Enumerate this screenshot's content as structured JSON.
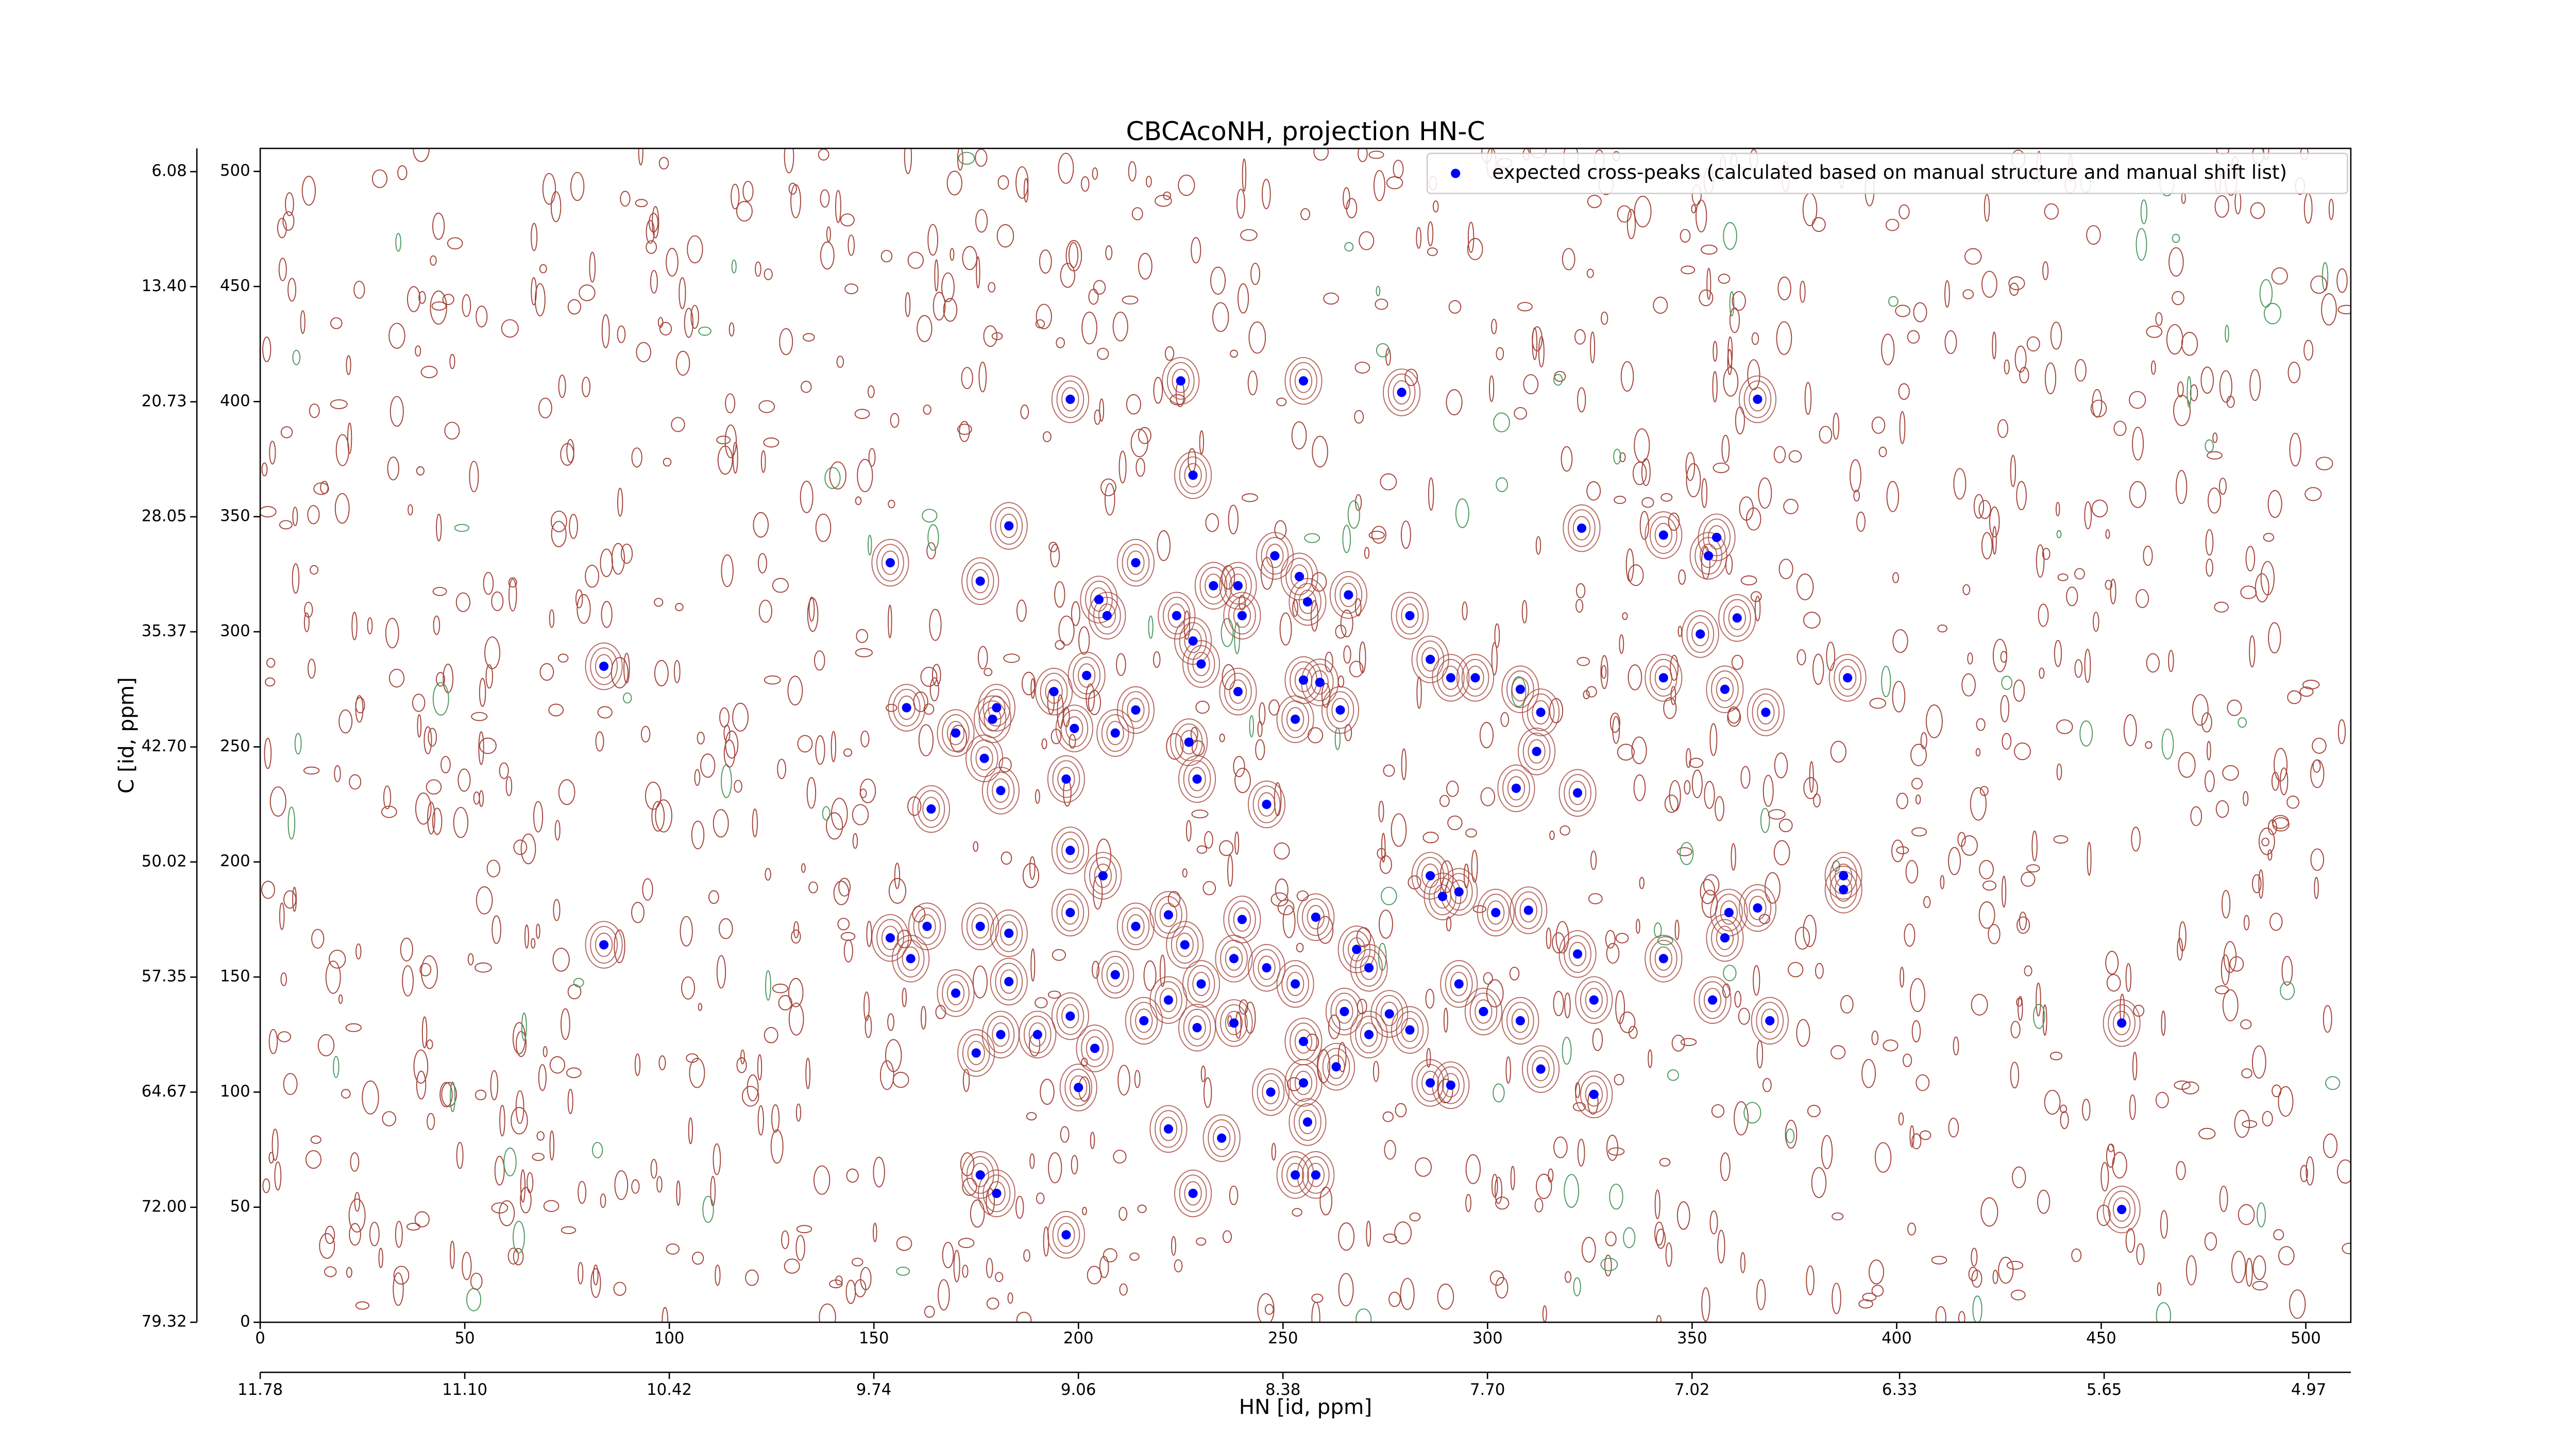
{
  "chart_data": {
    "type": "scatter",
    "title": "CBCAcoNH, projection HN-C",
    "x_label": "HN [id, ppm]",
    "y_label": "C [id, ppm]",
    "xlim": [
      0,
      511
    ],
    "ylim": [
      0,
      510
    ],
    "xticks": [
      0,
      50,
      100,
      150,
      200,
      250,
      300,
      350,
      400,
      450,
      500
    ],
    "yticks": [
      0,
      50,
      100,
      150,
      200,
      250,
      300,
      350,
      400,
      450,
      500
    ],
    "x2lim": [
      11.78,
      4.83
    ],
    "x2ticks": [
      11.78,
      {
        "value": 11.1,
        "label": "11.10"
      },
      10.42,
      9.74,
      9.06,
      8.38,
      {
        "value": 7.7,
        "label": "7.70"
      },
      7.02,
      6.33,
      5.65,
      4.97
    ],
    "y2lim": [
      79.32,
      4.6
    ],
    "y2ticks": [
      6.08,
      {
        "value": 13.4,
        "label": "13.40"
      },
      20.73,
      28.05,
      35.37,
      {
        "value": 42.7,
        "label": "42.70"
      },
      50.02,
      57.35,
      64.67,
      {
        "value": 72,
        "label": "72.00"
      },
      79.32
    ],
    "legend": "upper right",
    "series": [
      {
        "name": "expected cross-peaks (calculated based on manual structure and manual shift list)",
        "color": "#0000ff",
        "x": [
          154,
          84,
          84,
          158,
          164,
          183,
          176,
          198,
          225,
          228,
          255,
          279,
          366,
          323,
          343,
          356,
          354,
          388,
          343,
          352,
          361,
          358,
          368,
          387,
          387,
          366,
          359,
          358,
          343,
          355,
          369,
          455,
          455,
          322,
          326,
          326,
          313,
          308,
          299,
          293,
          286,
          291,
          322,
          307,
          312,
          313,
          308,
          297,
          291,
          286,
          281,
          266,
          256,
          254,
          248,
          239,
          233,
          240,
          228,
          224,
          230,
          214,
          209,
          199,
          202,
          194,
          207,
          205,
          214,
          229,
          227,
          246,
          255,
          259,
          264,
          253,
          239,
          180,
          179,
          177,
          181,
          197,
          170,
          198,
          206,
          198,
          214,
          222,
          226,
          230,
          238,
          240,
          246,
          253,
          258,
          268,
          271,
          265,
          271,
          255,
          263,
          255,
          247,
          238,
          229,
          222,
          216,
          209,
          198,
          204,
          190,
          181,
          183,
          175,
          170,
          159,
          154,
          163,
          176,
          183,
          200,
          222,
          235,
          228,
          253,
          258,
          256,
          180,
          176,
          197,
          286,
          289,
          293,
          302,
          310,
          281,
          276
        ],
        "values": [
          330,
          285,
          164,
          267,
          223,
          346,
          322,
          401,
          409,
          368,
          409,
          404,
          401,
          345,
          342,
          341,
          333,
          280,
          280,
          299,
          306,
          275,
          265,
          194,
          188,
          180,
          178,
          167,
          158,
          140,
          131,
          130,
          49,
          160,
          140,
          99,
          110,
          131,
          135,
          147,
          104,
          103,
          230,
          232,
          248,
          265,
          275,
          280,
          280,
          288,
          307,
          316,
          313,
          324,
          333,
          320,
          320,
          307,
          296,
          307,
          286,
          266,
          256,
          258,
          281,
          274,
          307,
          314,
          330,
          236,
          252,
          225,
          279,
          278,
          266,
          262,
          274,
          267,
          262,
          245,
          231,
          236,
          256,
          205,
          194,
          178,
          172,
          177,
          164,
          147,
          158,
          175,
          154,
          147,
          176,
          162,
          154,
          135,
          125,
          122,
          111,
          104,
          100,
          130,
          128,
          140,
          131,
          151,
          133,
          119,
          125,
          125,
          148,
          117,
          143,
          158,
          167,
          172,
          172,
          169,
          102,
          84,
          80,
          56,
          64,
          64,
          87,
          56,
          64,
          38,
          194,
          185,
          187,
          178,
          179,
          127,
          134
        ]
      }
    ]
  }
}
